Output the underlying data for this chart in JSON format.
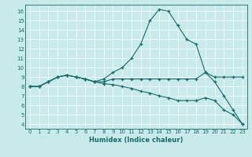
{
  "xlabel": "Humidex (Indice chaleur)",
  "xlim": [
    -0.5,
    23.5
  ],
  "ylim": [
    3.5,
    16.7
  ],
  "xticks": [
    0,
    1,
    2,
    3,
    4,
    5,
    6,
    7,
    8,
    9,
    10,
    11,
    12,
    13,
    14,
    15,
    16,
    17,
    18,
    19,
    20,
    21,
    22,
    23
  ],
  "yticks": [
    4,
    5,
    6,
    7,
    8,
    9,
    10,
    11,
    12,
    13,
    14,
    15,
    16
  ],
  "bg_color": "#c8eaea",
  "line_color": "#1a6b6b",
  "grid_color": "#ffffff",
  "line1": [
    [
      0,
      8
    ],
    [
      1,
      8
    ],
    [
      2,
      8.5
    ],
    [
      3,
      9
    ],
    [
      4,
      9.2
    ],
    [
      5,
      9.0
    ],
    [
      6,
      8.8
    ],
    [
      7,
      8.5
    ],
    [
      8,
      8.8
    ],
    [
      9,
      9.5
    ],
    [
      10,
      10.0
    ],
    [
      11,
      11.0
    ],
    [
      12,
      12.5
    ],
    [
      13,
      15.0
    ],
    [
      14,
      16.2
    ],
    [
      15,
      16.0
    ],
    [
      16,
      14.5
    ],
    [
      17,
      13.0
    ],
    [
      18,
      12.5
    ],
    [
      19,
      9.5
    ],
    [
      20,
      8.5
    ],
    [
      21,
      7.0
    ],
    [
      22,
      5.5
    ],
    [
      23,
      4.0
    ]
  ],
  "line2": [
    [
      0,
      8
    ],
    [
      1,
      8
    ],
    [
      2,
      8.5
    ],
    [
      3,
      9
    ],
    [
      4,
      9.2
    ],
    [
      5,
      9.0
    ],
    [
      6,
      8.8
    ],
    [
      7,
      8.5
    ],
    [
      8,
      8.5
    ],
    [
      9,
      8.8
    ],
    [
      10,
      8.8
    ],
    [
      11,
      8.8
    ],
    [
      12,
      8.8
    ],
    [
      13,
      8.8
    ],
    [
      14,
      8.8
    ],
    [
      15,
      8.8
    ],
    [
      16,
      8.8
    ],
    [
      17,
      8.8
    ],
    [
      18,
      8.8
    ],
    [
      19,
      9.5
    ],
    [
      20,
      9.0
    ],
    [
      21,
      9.0
    ],
    [
      22,
      9.0
    ],
    [
      23,
      9.0
    ]
  ],
  "line3": [
    [
      0,
      8
    ],
    [
      1,
      8
    ],
    [
      2,
      8.5
    ],
    [
      3,
      9
    ],
    [
      4,
      9.2
    ],
    [
      5,
      9.0
    ],
    [
      6,
      8.8
    ],
    [
      7,
      8.5
    ],
    [
      8,
      8.3
    ],
    [
      9,
      8.2
    ],
    [
      10,
      8.0
    ],
    [
      11,
      7.8
    ],
    [
      12,
      7.5
    ],
    [
      13,
      7.3
    ],
    [
      14,
      7.0
    ],
    [
      15,
      6.8
    ],
    [
      16,
      6.5
    ],
    [
      17,
      6.5
    ],
    [
      18,
      6.5
    ],
    [
      19,
      6.8
    ],
    [
      20,
      6.5
    ],
    [
      21,
      5.5
    ],
    [
      22,
      5.0
    ],
    [
      23,
      4.0
    ]
  ],
  "xlabel_fontsize": 6,
  "tick_fontsize": 5
}
